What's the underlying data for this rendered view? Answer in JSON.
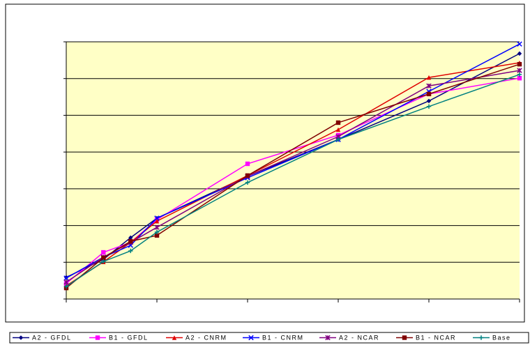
{
  "chart_data": {
    "type": "line",
    "x": [
      0,
      0.41,
      0.71,
      1,
      2,
      3,
      4,
      5
    ],
    "xlim": [
      0,
      5
    ],
    "xticks": [
      0,
      1,
      2,
      3,
      4,
      5
    ],
    "ylim": [
      0,
      7
    ],
    "yticks": [
      0,
      1,
      2,
      3,
      4,
      5,
      6,
      7
    ],
    "grid": true,
    "legend": "bottom",
    "series": [
      {
        "name": "A2 - GFDL",
        "color": "#000080",
        "marker": "diamond",
        "values": [
          0.59,
          1.08,
          1.67,
          2.2,
          3.34,
          4.34,
          5.39,
          6.68
        ]
      },
      {
        "name": "B1 - GFDL",
        "color": "#ff00ff",
        "marker": "square",
        "values": [
          0.42,
          1.27,
          1.54,
          2.16,
          3.68,
          4.46,
          5.58,
          6.01
        ]
      },
      {
        "name": "A2 - CNRM",
        "color": "#e00000",
        "marker": "triangle",
        "values": [
          0.36,
          1.01,
          1.54,
          2.12,
          3.36,
          4.61,
          6.03,
          6.43
        ]
      },
      {
        "name": "B1 - CNRM",
        "color": "#0000ff",
        "marker": "x",
        "values": [
          0.57,
          1.14,
          1.46,
          2.2,
          3.3,
          4.34,
          5.65,
          6.94
        ]
      },
      {
        "name": "A2 - NCAR",
        "color": "#800080",
        "marker": "star",
        "values": [
          0.46,
          1.14,
          1.54,
          1.95,
          3.34,
          4.42,
          5.8,
          6.22
        ]
      },
      {
        "name": "B1 - NCAR",
        "color": "#800000",
        "marker": "square",
        "values": [
          0.3,
          1.12,
          1.57,
          1.73,
          3.36,
          4.8,
          5.58,
          6.39
        ]
      },
      {
        "name": "Base",
        "color": "#008080",
        "marker": "plus",
        "values": [
          0.34,
          1.02,
          1.31,
          1.82,
          3.17,
          4.34,
          5.24,
          6.11
        ]
      }
    ]
  }
}
